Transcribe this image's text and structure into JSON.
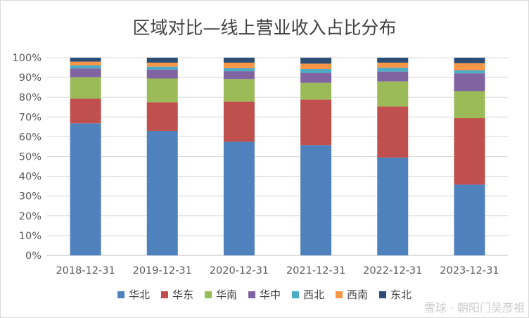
{
  "chart_data": {
    "type": "bar",
    "stacked": true,
    "title": "区域对比—线上营业收入占比分布",
    "categories": [
      "2018-12-31",
      "2019-12-31",
      "2020-12-31",
      "2021-12-31",
      "2022-12-31",
      "2023-12-31"
    ],
    "ylim": [
      0,
      100
    ],
    "yticks": [
      "0%",
      "10%",
      "20%",
      "30%",
      "40%",
      "50%",
      "60%",
      "70%",
      "80%",
      "90%",
      "100%"
    ],
    "grid": true,
    "legend": "bottom",
    "series": [
      {
        "name": "华北",
        "color": "#4f81bd",
        "values": [
          66.8,
          63.0,
          57.5,
          55.8,
          49.5,
          35.8
        ]
      },
      {
        "name": "华东",
        "color": "#c0504d",
        "values": [
          12.5,
          14.5,
          20.3,
          23.0,
          25.8,
          33.6
        ]
      },
      {
        "name": "华南",
        "color": "#9bbb59",
        "values": [
          10.8,
          12.0,
          11.4,
          8.5,
          12.7,
          13.7
        ]
      },
      {
        "name": "华中",
        "color": "#8064a2",
        "values": [
          4.5,
          4.5,
          4.0,
          5.0,
          5.0,
          9.0
        ]
      },
      {
        "name": "西北",
        "color": "#4bacc6",
        "values": [
          1.5,
          1.5,
          1.5,
          2.0,
          1.9,
          1.5
        ]
      },
      {
        "name": "西南",
        "color": "#f79646",
        "values": [
          1.9,
          2.0,
          2.8,
          2.7,
          2.6,
          3.6
        ]
      },
      {
        "name": "东北",
        "color": "#2c4d75",
        "values": [
          2.0,
          2.5,
          2.5,
          3.0,
          2.5,
          2.8
        ]
      }
    ]
  },
  "watermark": "雪球 · 朝阳门吴彦祖"
}
